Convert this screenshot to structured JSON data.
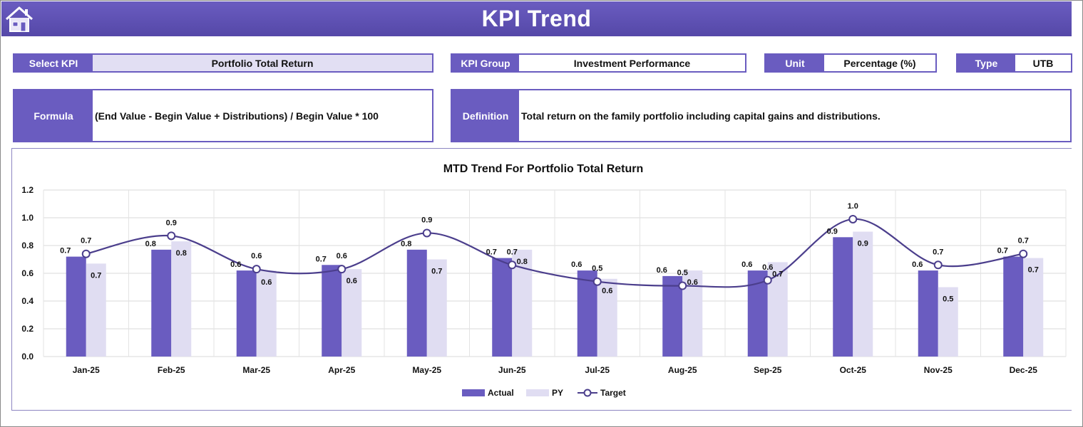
{
  "header": {
    "title": "KPI Trend",
    "home_icon": "home-icon"
  },
  "fields": {
    "select_kpi_label": "Select KPI",
    "select_kpi_value": "Portfolio Total Return",
    "kpi_group_label": "KPI Group",
    "kpi_group_value": "Investment Performance",
    "unit_label": "Unit",
    "unit_value": "Percentage (%)",
    "type_label": "Type",
    "type_value": "UTB",
    "formula_label": "Formula",
    "formula_value": "(End Value - Begin Value + Distributions) / Begin Value * 100",
    "definition_label": "Definition",
    "definition_value": "Total return on the family portfolio including capital gains and distributions."
  },
  "colors": {
    "accent": "#6a5cc0",
    "actual": "#6a5cc0",
    "py": "#e0ddf2",
    "target": "#4b3e8c",
    "lavender": "#e2dff3"
  },
  "chart_data": {
    "type": "bar",
    "title": "MTD Trend For Portfolio Total Return",
    "categories": [
      "Jan-25",
      "Feb-25",
      "Mar-25",
      "Apr-25",
      "May-25",
      "Jun-25",
      "Jul-25",
      "Aug-25",
      "Sep-25",
      "Oct-25",
      "Nov-25",
      "Dec-25"
    ],
    "series": [
      {
        "name": "Actual",
        "type": "bar",
        "values": [
          0.72,
          0.77,
          0.62,
          0.66,
          0.77,
          0.71,
          0.62,
          0.58,
          0.62,
          0.86,
          0.62,
          0.72
        ]
      },
      {
        "name": "PY",
        "type": "bar",
        "values": [
          0.67,
          0.83,
          0.62,
          0.63,
          0.7,
          0.77,
          0.56,
          0.62,
          0.68,
          0.9,
          0.5,
          0.71
        ]
      },
      {
        "name": "Target",
        "type": "line",
        "smooth": true,
        "values": [
          0.74,
          0.87,
          0.63,
          0.63,
          0.89,
          0.66,
          0.54,
          0.51,
          0.55,
          0.99,
          0.66,
          0.74
        ]
      }
    ],
    "ylim": [
      0,
      1.2
    ],
    "yticks": [
      "0.0",
      "0.2",
      "0.4",
      "0.6",
      "0.8",
      "1.0",
      "1.2"
    ],
    "grid": true,
    "legend_position": "bottom"
  }
}
